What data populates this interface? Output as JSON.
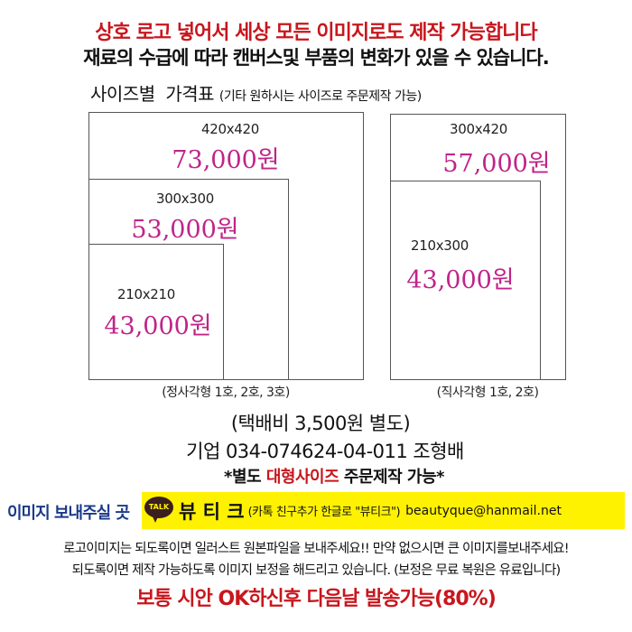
{
  "header": {
    "line1": "상호 로고 넣어서 세상 모든 이미지로도 제작 가능합니다",
    "line2": "재료의 수급에 따라 캔버스및 부품의 변화가 있을 수 있습니다.",
    "title": "사이즈별  가격표",
    "title_note": "(기타 원하시는 사이즈로 주문제작 가능)"
  },
  "square": {
    "caption": "(정사각형 1호, 2호, 3호)",
    "items": [
      {
        "size": "420x420",
        "price": "73,000원"
      },
      {
        "size": "300x300",
        "price": "53,000원"
      },
      {
        "size": "210x210",
        "price": "43,000원"
      }
    ]
  },
  "rect": {
    "caption": "(직사각형 1호, 2호)",
    "items": [
      {
        "size": "300x420",
        "price": "57,000원"
      },
      {
        "size": "210x300",
        "price": "43,000원"
      }
    ]
  },
  "shipping": "(택배비 3,500원 별도)",
  "bank": "기업 034-074624-04-011 조형배",
  "custom": {
    "pre": "*별도 ",
    "highlight": "대형사이즈",
    "post": " 주문제작 가능*"
  },
  "contact": {
    "label": "이미지 보내주실 곳",
    "talk_icon_text": "TALK",
    "name": "뷰 티 크",
    "note": "(카톡 친구추가 한글로  \"뷰티크\")",
    "email": "beautyque@hanmail.net"
  },
  "notes": [
    "로고이미지는 되도록이면 일러스트 원본파일을 보내주세요!! 만약 없으시면 큰 이미지를보내주세요!",
    "되도록이면 제작 가능하도록 이미지 보정을 해드리고 있습니다. (보정은 무료 복원은 유료입니다)"
  ],
  "footer": "보통 시안 OK하신후 다음날 발송가능(80%)",
  "colors": {
    "red": "#c8161d",
    "pink": "#c0248a",
    "blue": "#1a3a8a",
    "yellow": "#fff200"
  }
}
